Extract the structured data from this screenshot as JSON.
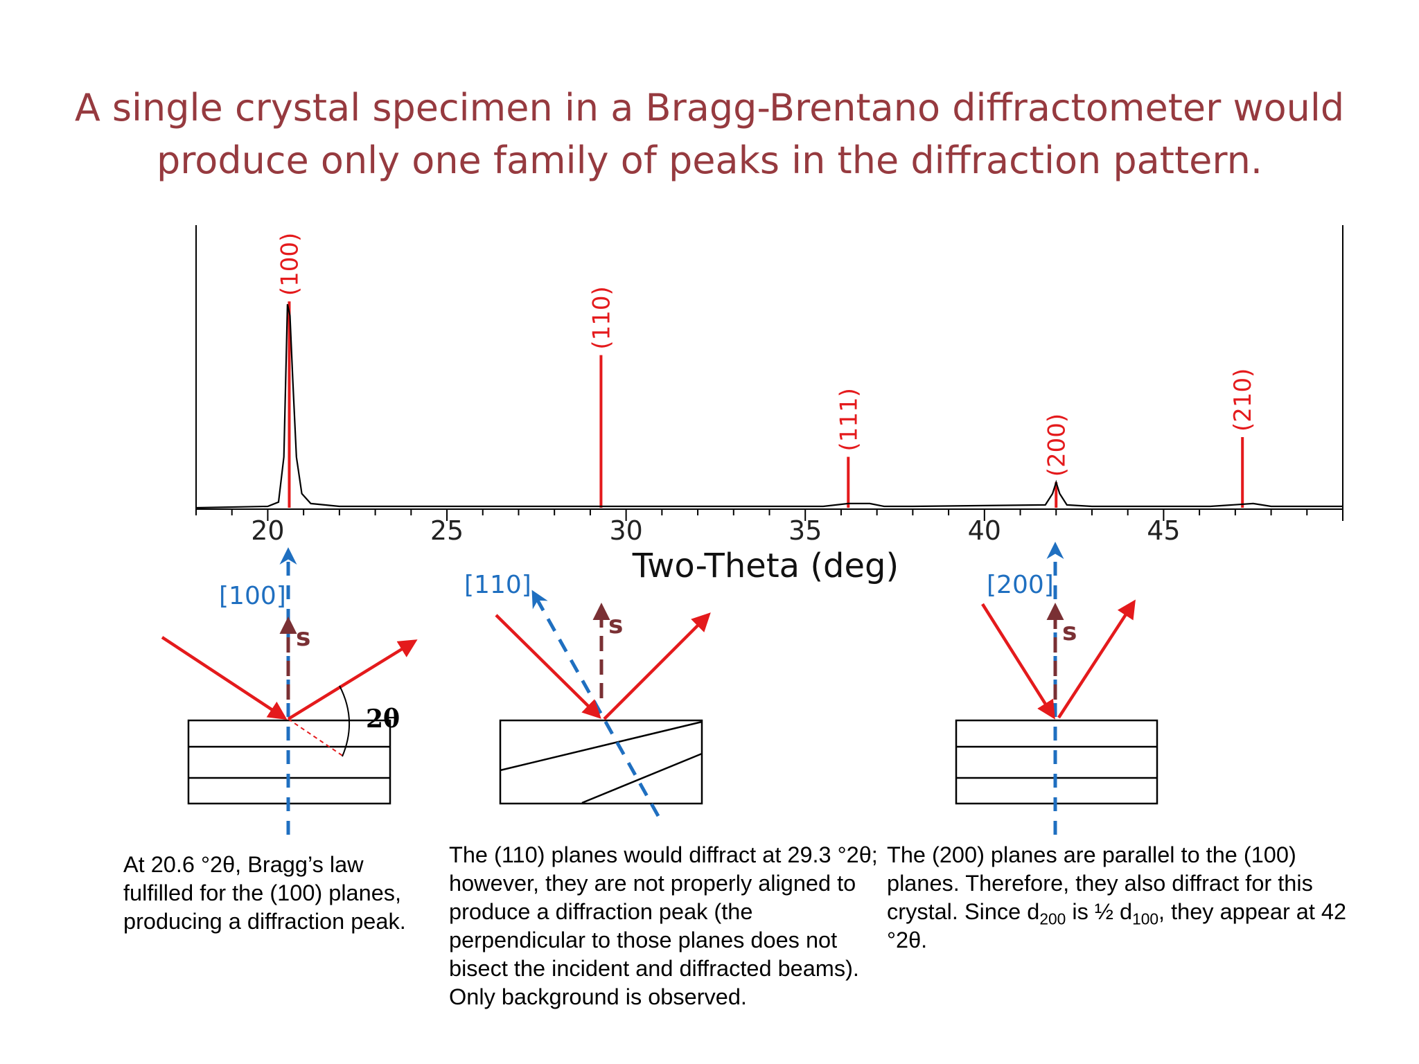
{
  "title": {
    "line1": "A single crystal specimen in a Bragg-Brentano diffractometer would",
    "line2": "produce only one family of peaks in the diffraction pattern."
  },
  "chart_data": {
    "type": "line",
    "xlabel": "Two-Theta (deg)",
    "ylabel": "",
    "xlim": [
      18,
      50
    ],
    "ylim": [
      0,
      100
    ],
    "xticks": [
      20,
      25,
      30,
      35,
      40,
      45
    ],
    "grid": false,
    "series": [
      {
        "x": [
          18,
          20,
          20.3,
          20.45,
          20.55,
          20.62,
          20.7,
          20.8,
          20.95,
          21.2,
          22,
          25,
          29,
          30,
          35.5,
          36.2,
          36.8,
          37.2,
          38,
          41.7,
          41.9,
          42,
          42.1,
          42.3,
          43,
          46.3,
          47.5,
          48,
          50
        ],
        "y": [
          0,
          0.5,
          2,
          18,
          72,
          68,
          45,
          18,
          5,
          1.5,
          0.5,
          0.5,
          0.5,
          0.5,
          0.5,
          1.5,
          1.5,
          0.5,
          0.5,
          1,
          5,
          9,
          5,
          1,
          0.5,
          0.5,
          1.5,
          0.5,
          0.5
        ]
      }
    ],
    "reference_lines": [
      {
        "label": "(100)",
        "x": 20.6,
        "height": 73
      },
      {
        "label": "(110)",
        "x": 29.3,
        "height": 54
      },
      {
        "label": "(111)",
        "x": 36.2,
        "height": 18
      },
      {
        "label": "(200)",
        "x": 42.0,
        "height": 9
      },
      {
        "label": "(210)",
        "x": 47.2,
        "height": 25
      }
    ],
    "colors": {
      "pattern": "#000000",
      "reference": "#e41a1c"
    }
  },
  "diagrams": [
    {
      "direction_label": "[100]",
      "normal_label": "s",
      "angle_label": "2θ"
    },
    {
      "direction_label": "[110]",
      "normal_label": "s"
    },
    {
      "direction_label": "[200]",
      "normal_label": "s"
    }
  ],
  "captions": [
    {
      "text": "At 20.6 °2θ, Bragg’s law fulfilled for the (100) planes, producing a diffraction peak."
    },
    {
      "text": "The (110) planes would diffract at 29.3 °2θ; however, they are not properly aligned to produce a diffraction peak (the perpendicular to those planes does not bisect the incident and diffracted beams). Only background is observed."
    },
    {
      "a": "The (200) planes are parallel to the (100) planes. Therefore, they also diffract for this crystal. Since d",
      "sub1": "200",
      "b": " is ½ d",
      "sub2": "100",
      "c": ", they appear at 42 °2θ."
    }
  ],
  "colors": {
    "title": "#963a3f",
    "beam": "#e41a1c",
    "plane_normal": "#1f6fc0",
    "bisector": "#7a3034",
    "label_blue": "#1f6fc0"
  }
}
